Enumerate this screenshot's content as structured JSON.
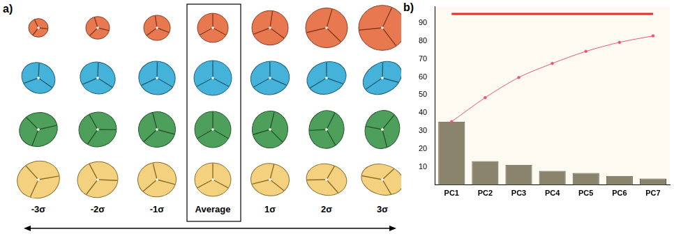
{
  "panel_a": {
    "label": "a)",
    "columns": [
      "-3σ",
      "-2σ",
      "-1σ",
      "Average",
      "1σ",
      "2σ",
      "3σ"
    ]
  },
  "chart_data": {
    "type": "bar",
    "title": "b)",
    "categories": [
      "PC1",
      "PC2",
      "PC3",
      "PC4",
      "PC5",
      "PC6",
      "PC7"
    ],
    "series": [
      {
        "type": "bar",
        "color": "#8b846c",
        "values": [
          35.2,
          13.3,
          11.2,
          7.8,
          6.7,
          5.0,
          3.6
        ]
      },
      {
        "type": "line",
        "color": "#e8577e",
        "marker": "circle",
        "line_style": "solid",
        "values": [
          35.2,
          48.5,
          59.7,
          67.5,
          74.2,
          79.2,
          82.8
        ]
      },
      {
        "type": "line",
        "color": "#e82a2a",
        "marker": "none",
        "line_style": "solid",
        "values": [
          95,
          95,
          95,
          95,
          95,
          95,
          95
        ]
      }
    ],
    "ylim": [
      0,
      99
    ],
    "yticks": [
      10,
      20,
      30,
      40,
      50,
      60,
      70,
      80,
      90
    ],
    "grid": false
  }
}
